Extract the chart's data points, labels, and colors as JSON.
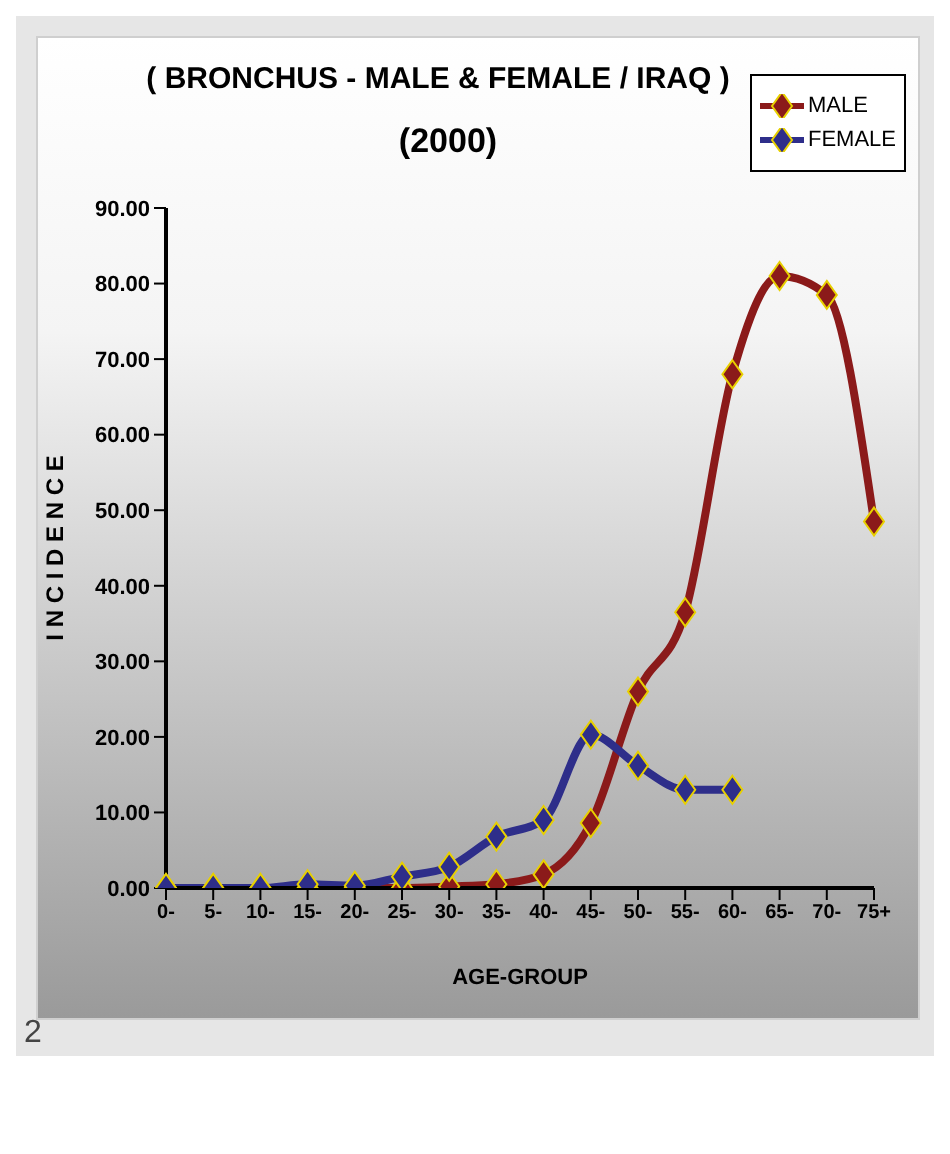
{
  "chart_data": {
    "type": "line",
    "title": "( BRONCHUS - MALE & FEMALE / IRAQ )",
    "subtitle": "(2000)",
    "xlabel": "AGE-GROUP",
    "ylabel": "I N C I D E N C E",
    "categories": [
      "0-",
      "5-",
      "10-",
      "15-",
      "20-",
      "25-",
      "30-",
      "35-",
      "40-",
      "45-",
      "50-",
      "55-",
      "60-",
      "65-",
      "70-",
      "75+"
    ],
    "series": [
      {
        "name": "MALE",
        "color": "#8b1a1a",
        "values": [
          0,
          0,
          0,
          0,
          0,
          0,
          0.2,
          0.5,
          1.8,
          8.6,
          26,
          36.5,
          68,
          81,
          78.5,
          48.5
        ]
      },
      {
        "name": "FEMALE",
        "color": "#2e2e8a",
        "values": [
          0,
          0,
          0,
          0.5,
          0.3,
          1.5,
          2.8,
          6.8,
          9,
          20.3,
          16.2,
          13,
          13,
          null,
          null,
          null
        ]
      }
    ],
    "ylim": [
      0,
      90
    ],
    "yticks": [
      {
        "value": 0,
        "label": "0.00"
      },
      {
        "value": 10,
        "label": "10.00"
      },
      {
        "value": 20,
        "label": "20.00"
      },
      {
        "value": 30,
        "label": "30.00"
      },
      {
        "value": 40,
        "label": "40.00"
      },
      {
        "value": 50,
        "label": "50.00"
      },
      {
        "value": 60,
        "label": "60.00"
      },
      {
        "value": 70,
        "label": "70.00"
      },
      {
        "value": 80,
        "label": "80.00"
      },
      {
        "value": 90,
        "label": "90.00"
      }
    ],
    "legend": "top right",
    "marker": "diamond",
    "annotations": [
      "2"
    ]
  }
}
